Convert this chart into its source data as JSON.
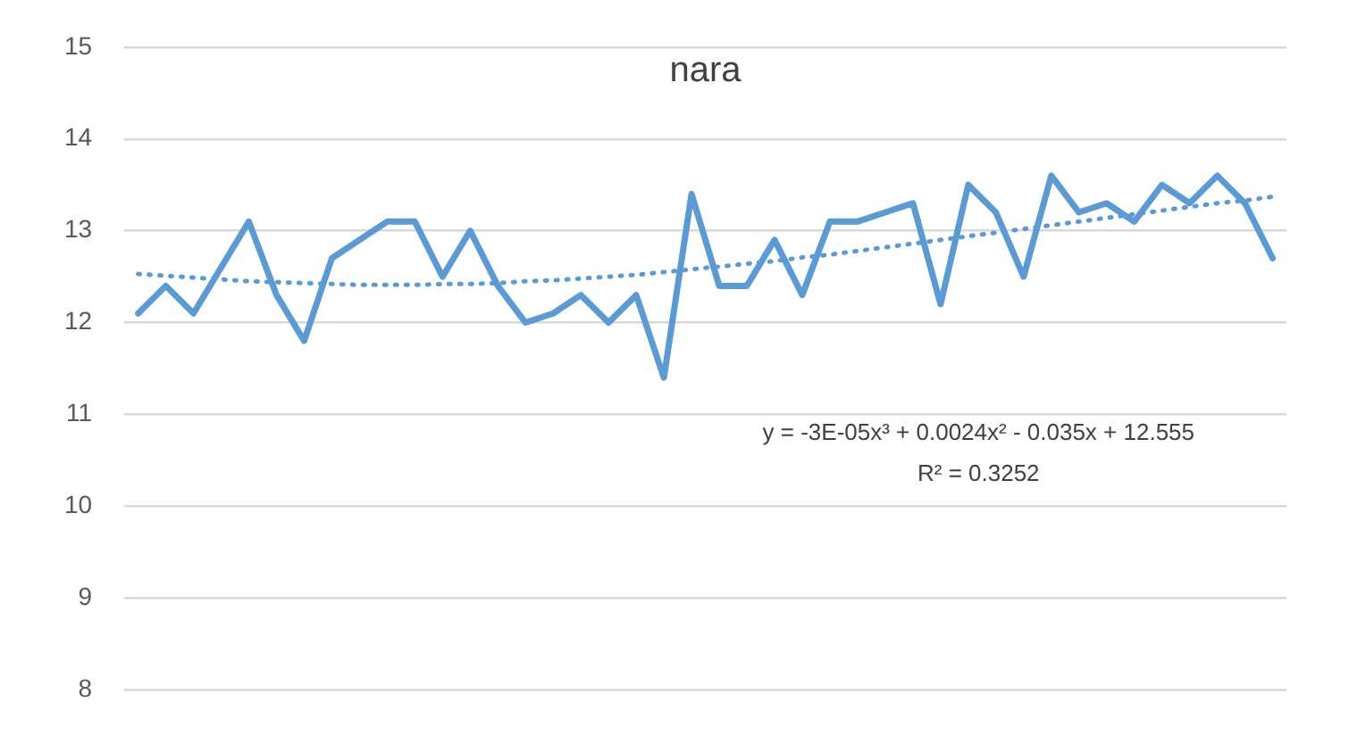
{
  "chart_data": {
    "type": "line",
    "title": "nara",
    "categories": [
      null,
      null,
      null,
      null,
      null,
      null,
      null,
      null,
      null,
      null,
      null,
      null,
      null,
      null,
      null,
      null,
      null,
      null,
      null,
      null,
      null,
      null,
      null,
      null,
      null,
      null,
      null,
      null,
      null,
      null,
      null,
      null,
      null,
      null,
      null,
      null,
      null,
      null,
      null,
      null,
      null,
      null
    ],
    "series": [
      {
        "color": "#5b9bd5",
        "values": [
          12.1,
          12.4,
          12.1,
          12.6,
          13.1,
          12.3,
          11.8,
          12.7,
          12.9,
          13.1,
          13.1,
          12.5,
          13.0,
          12.4,
          12.0,
          12.1,
          12.3,
          12.0,
          12.3,
          11.4,
          13.4,
          12.4,
          12.4,
          12.9,
          12.3,
          13.1,
          13.1,
          13.2,
          13.3,
          12.2,
          13.5,
          13.2,
          12.5,
          13.6,
          13.2,
          13.3,
          13.1,
          13.5,
          13.3,
          13.6,
          13.3,
          12.7
        ]
      },
      {
        "type": "line",
        "color": "#5b9bd5",
        "line_style": "dotted",
        "values": [
          12.53,
          12.51,
          12.49,
          12.47,
          12.45,
          12.44,
          12.43,
          12.42,
          12.41,
          12.41,
          12.41,
          12.42,
          12.42,
          12.43,
          12.45,
          12.46,
          12.48,
          12.5,
          12.52,
          12.55,
          12.58,
          12.61,
          12.64,
          12.67,
          12.71,
          12.74,
          12.78,
          12.82,
          12.86,
          12.9,
          12.94,
          12.98,
          13.02,
          13.06,
          13.1,
          13.14,
          13.18,
          13.22,
          13.26,
          13.3,
          13.33,
          13.37
        ]
      }
    ],
    "ylim": [
      8,
      15
    ],
    "yticks": [
      8,
      9,
      10,
      11,
      12,
      13,
      14,
      15
    ],
    "grid": "y",
    "legend": false,
    "marker": "none",
    "line_style": "solid",
    "tick_labels": "y",
    "annotations": [
      "y = -3E-05x³ + 0.0024x² - 0.035x + 12.555",
      "R² = 0.3252"
    ]
  }
}
